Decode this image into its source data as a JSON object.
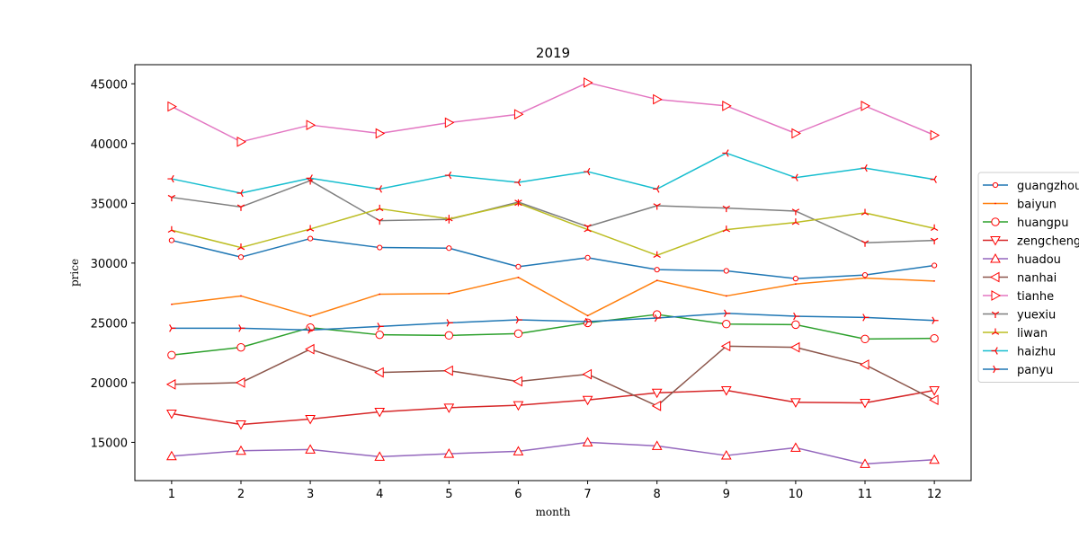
{
  "chart_data": {
    "type": "line",
    "title": "2019",
    "xlabel": "month",
    "ylabel": "price",
    "x": [
      1,
      2,
      3,
      4,
      5,
      6,
      7,
      8,
      9,
      10,
      11,
      12
    ],
    "xlim": [
      0.47,
      12.53
    ],
    "ylim": [
      11800,
      46600
    ],
    "yticks": [
      15000,
      20000,
      25000,
      30000,
      35000,
      40000,
      45000
    ],
    "grid": false,
    "legend_position": "right",
    "marker_edge_color": "#ff0000",
    "series": [
      {
        "name": "guangzhou",
        "color": "#1f77b4",
        "marker": "circle-small",
        "values": [
          31900,
          30500,
          32050,
          31300,
          31250,
          29700,
          30450,
          29450,
          29350,
          28700,
          29000,
          29800
        ]
      },
      {
        "name": "baiyun",
        "color": "#ff7f0e",
        "marker": "pixel",
        "values": [
          26550,
          27250,
          25550,
          27400,
          27450,
          28800,
          25600,
          28550,
          27250,
          28250,
          28750,
          28500
        ]
      },
      {
        "name": "huangpu",
        "color": "#2ca02c",
        "marker": "circle",
        "values": [
          22300,
          22950,
          24600,
          24000,
          23950,
          24100,
          25000,
          25700,
          24900,
          24850,
          23650,
          23700
        ]
      },
      {
        "name": "zengcheng",
        "color": "#d62728",
        "marker": "triangle-down",
        "values": [
          17400,
          16500,
          16950,
          17550,
          17900,
          18100,
          18550,
          19150,
          19350,
          18350,
          18300,
          19350
        ]
      },
      {
        "name": "huadou",
        "color": "#9467bd",
        "marker": "triangle-up",
        "values": [
          13850,
          14300,
          14400,
          13800,
          14050,
          14250,
          15000,
          14700,
          13900,
          14550,
          13200,
          13550
        ]
      },
      {
        "name": "nanhai",
        "color": "#8c564b",
        "marker": "triangle-left",
        "values": [
          19850,
          20000,
          22800,
          20850,
          21000,
          20100,
          20700,
          18050,
          23050,
          22950,
          21500,
          18550
        ]
      },
      {
        "name": "tianhe",
        "color": "#e377c2",
        "marker": "triangle-right",
        "values": [
          43100,
          40150,
          41550,
          40850,
          41750,
          42450,
          45100,
          43700,
          43150,
          40850,
          43150,
          40700
        ]
      },
      {
        "name": "yuexiu",
        "color": "#7f7f7f",
        "marker": "tri-down",
        "values": [
          35500,
          34700,
          36900,
          33550,
          33650,
          35100,
          33050,
          34800,
          34600,
          34350,
          31700,
          31900
        ]
      },
      {
        "name": "liwan",
        "color": "#bcbd22",
        "marker": "tri-up",
        "values": [
          32750,
          31300,
          32850,
          34550,
          33700,
          35000,
          32800,
          30650,
          32800,
          33400,
          34200,
          32900
        ]
      },
      {
        "name": "haizhu",
        "color": "#17becf",
        "marker": "tri-left",
        "values": [
          37050,
          35850,
          37100,
          36200,
          37350,
          36750,
          37650,
          36200,
          39200,
          37150,
          37950,
          37000
        ]
      },
      {
        "name": "panyu",
        "color": "#1f77b4",
        "marker": "tri-right",
        "values": [
          24550,
          24550,
          24400,
          24700,
          25000,
          25250,
          25100,
          25400,
          25800,
          25550,
          25450,
          25200
        ]
      }
    ]
  }
}
